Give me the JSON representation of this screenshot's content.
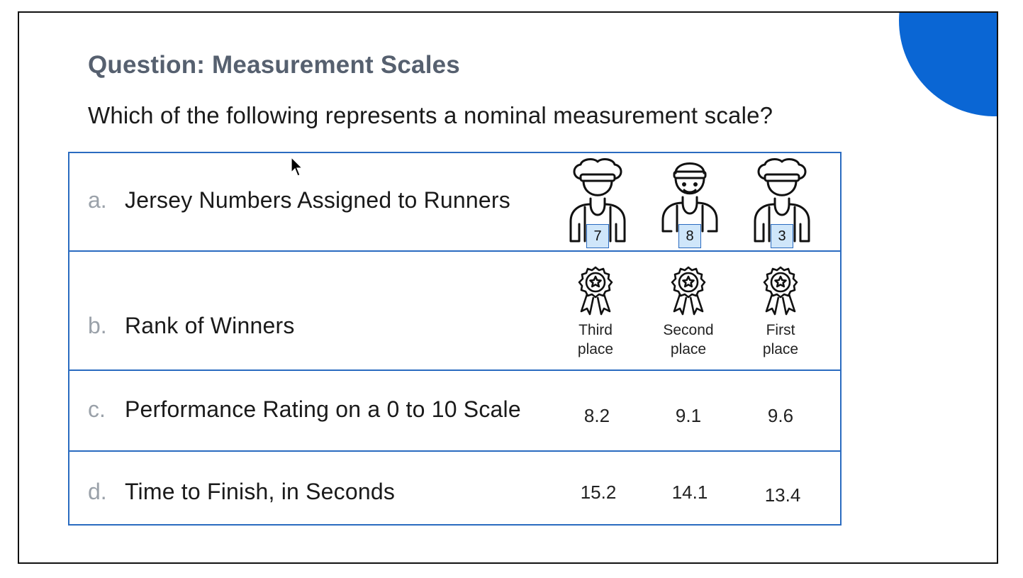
{
  "slide": {
    "title": "Question: Measurement Scales",
    "question": "Which of the following represents a nominal measurement scale?",
    "accent_color": "#0a66d4",
    "border_color": "#2a6bc0"
  },
  "options": [
    {
      "letter": "a.",
      "text": "Jersey Numbers Assigned to Runners",
      "items": [
        "7",
        "8",
        "3"
      ],
      "icon": "runner-icon"
    },
    {
      "letter": "b.",
      "text": "Rank of Winners",
      "items": [
        {
          "line1": "Third",
          "line2": "place"
        },
        {
          "line1": "Second",
          "line2": "place"
        },
        {
          "line1": "First",
          "line2": "place"
        }
      ],
      "icon": "medal-icon"
    },
    {
      "letter": "c.",
      "text": "Performance Rating on a 0 to 10 Scale",
      "items": [
        "8.2",
        "9.1",
        "9.6"
      ]
    },
    {
      "letter": "d.",
      "text": "Time to Finish, in Seconds",
      "items": [
        "15.2",
        "14.1",
        "13.4"
      ]
    }
  ]
}
